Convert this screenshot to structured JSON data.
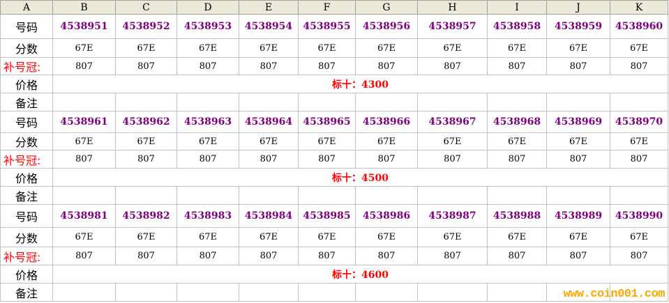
{
  "columns": [
    "A",
    "B",
    "C",
    "D",
    "E",
    "F",
    "G",
    "H",
    "I",
    "J",
    "K"
  ],
  "labels": {
    "number": "号码",
    "grade": "分数",
    "crown": "补号冠:",
    "price": "价格",
    "note": "备注"
  },
  "blocks": [
    {
      "numbers": [
        "4538951",
        "4538952",
        "4538953",
        "4538954",
        "4538955",
        "4538956",
        "4538957",
        "4538958",
        "4538959",
        "4538960"
      ],
      "grade": "67E",
      "crown": "807",
      "price": "标十：4300"
    },
    {
      "numbers": [
        "4538961",
        "4538962",
        "4538963",
        "4538964",
        "4538965",
        "4538966",
        "4538967",
        "4538968",
        "4538969",
        "4538970"
      ],
      "grade": "67E",
      "crown": "807",
      "price": "标十：4500"
    },
    {
      "numbers": [
        "4538981",
        "4538982",
        "4538983",
        "4538984",
        "4538985",
        "4538986",
        "4538987",
        "4538988",
        "4538989",
        "4538990"
      ],
      "grade": "67E",
      "crown": "807",
      "price": "标十：4600"
    }
  ],
  "watermark": "www.coin001.com",
  "colors": {
    "number": "#800080",
    "price": "#ff0000",
    "watermark": "#ffa500"
  }
}
